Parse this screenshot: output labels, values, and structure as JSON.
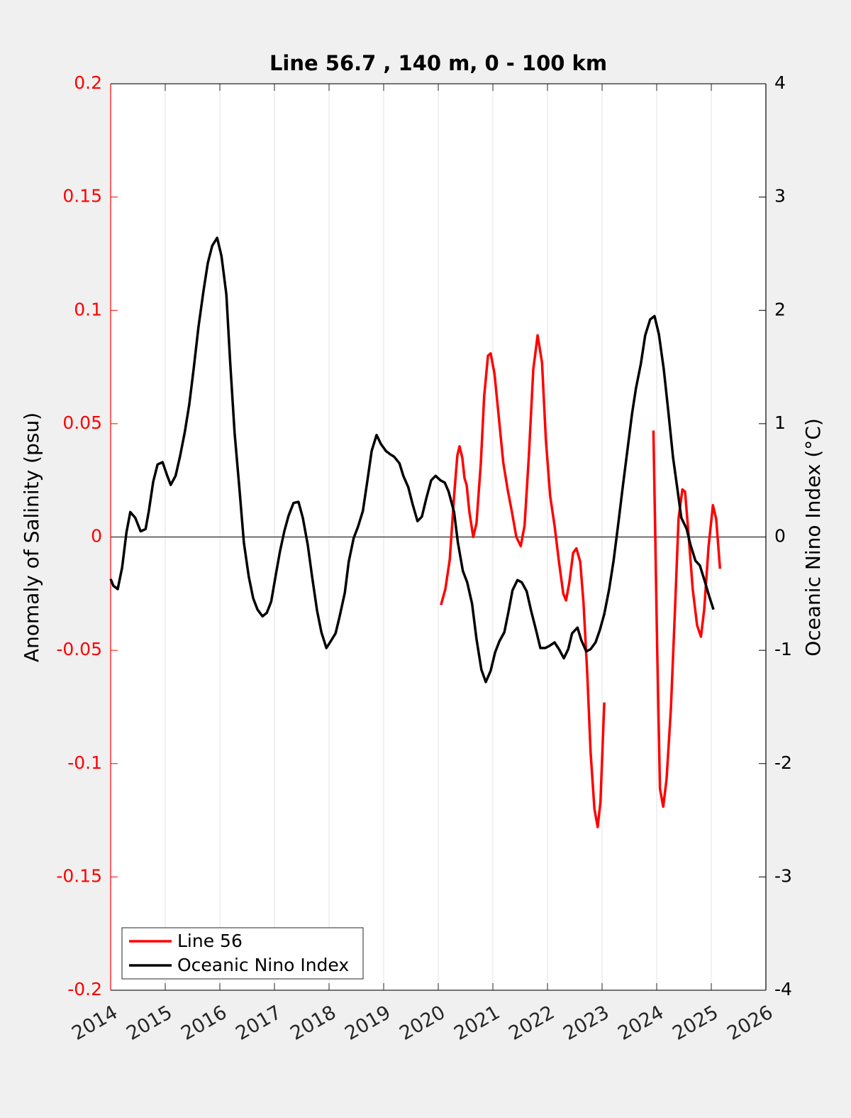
{
  "chart_data": {
    "type": "line",
    "title": "Line 56.7 , 140 m, 0 - 100 km",
    "y_label": "Anomaly of Salinity (psu)",
    "y2_label": "Oceanic Nino Index (°C)",
    "xlim": [
      2014,
      2026
    ],
    "xticks": [
      2014,
      2015,
      2016,
      2017,
      2018,
      2019,
      2020,
      2021,
      2022,
      2023,
      2024,
      2025,
      2026
    ],
    "ylim": [
      -0.2,
      0.2
    ],
    "yticks": [
      -0.2,
      -0.15,
      -0.1,
      -0.05,
      0,
      0.05,
      0.1,
      0.15,
      0.2
    ],
    "y2lim": [
      -4,
      4
    ],
    "y2ticks": [
      -4,
      -3,
      -2,
      -1,
      0,
      1,
      2,
      3,
      4
    ],
    "y_color": "#ff0000",
    "y2_color": "#000000",
    "grid": "x",
    "zero_line": true,
    "legend": "lower left",
    "series": [
      {
        "name": "Line 56",
        "color": "#ff0000",
        "axis": "y",
        "x": [
          2020.05,
          2020.13,
          2020.21,
          2020.29,
          2020.35,
          2020.39,
          2020.44,
          2020.48,
          2020.52,
          2020.57,
          2020.64,
          2020.7,
          2020.78,
          2020.84,
          2020.91,
          2020.96,
          2021.03,
          2021.1,
          2021.19,
          2021.27,
          2021.35,
          2021.43,
          2021.51,
          2021.58,
          2021.66,
          2021.74,
          2021.82,
          2021.9,
          2021.97,
          2022.05,
          2022.13,
          2022.21,
          2022.29,
          2022.34,
          2022.4,
          2022.47,
          2022.53,
          2022.6,
          2022.66,
          2022.73,
          2022.79,
          2022.86,
          2022.92,
          2022.97,
          2023.04,
          null,
          2023.94,
          2024.01,
          2024.06,
          2024.12,
          2024.18,
          2024.26,
          2024.34,
          2024.4,
          2024.47,
          2024.52,
          2024.58,
          2024.66,
          2024.74,
          2024.81,
          2024.87,
          2024.95,
          2025.03,
          2025.09,
          2025.16
        ],
        "values": [
          -0.03,
          -0.023,
          -0.01,
          0.018,
          0.036,
          0.04,
          0.035,
          0.026,
          0.023,
          0.011,
          0,
          0.006,
          0.033,
          0.062,
          0.08,
          0.081,
          0.072,
          0.055,
          0.033,
          0.021,
          0.011,
          0,
          -0.004,
          0.005,
          0.036,
          0.074,
          0.089,
          0.077,
          0.043,
          0.018,
          0.005,
          -0.011,
          -0.025,
          -0.028,
          -0.02,
          -0.007,
          -0.005,
          -0.011,
          -0.029,
          -0.061,
          -0.095,
          -0.12,
          -0.128,
          -0.117,
          -0.073,
          null,
          0.047,
          -0.051,
          -0.111,
          -0.119,
          -0.107,
          -0.076,
          -0.029,
          0.008,
          0.021,
          0.02,
          0.002,
          -0.023,
          -0.039,
          -0.044,
          -0.032,
          -0.004,
          0.014,
          0.008,
          -0.014
        ]
      },
      {
        "name": "Oceanic Nino Index",
        "color": "#000000",
        "axis": "y2",
        "x": [
          2014.0,
          2014.05,
          2014.13,
          2014.21,
          2014.29,
          2014.36,
          2014.45,
          2014.55,
          2014.64,
          2014.7,
          2014.78,
          2014.86,
          2014.95,
          2015.03,
          2015.1,
          2015.19,
          2015.27,
          2015.36,
          2015.44,
          2015.52,
          2015.61,
          2015.7,
          2015.78,
          2015.86,
          2015.95,
          2016.03,
          2016.12,
          2016.19,
          2016.27,
          2016.36,
          2016.44,
          2016.53,
          2016.61,
          2016.69,
          2016.78,
          2016.86,
          2016.94,
          2017.03,
          2017.1,
          2017.18,
          2017.26,
          2017.35,
          2017.44,
          2017.52,
          2017.61,
          2017.69,
          2017.78,
          2017.86,
          2017.95,
          2018.03,
          2018.12,
          2018.19,
          2018.29,
          2018.36,
          2018.45,
          2018.53,
          2018.62,
          2018.7,
          2018.78,
          2018.87,
          2018.95,
          2019.04,
          2019.12,
          2019.19,
          2019.29,
          2019.36,
          2019.45,
          2019.53,
          2019.62,
          2019.7,
          2019.78,
          2019.87,
          2019.95,
          2020.04,
          2020.12,
          2020.19,
          2020.29,
          2020.36,
          2020.45,
          2020.53,
          2020.62,
          2020.7,
          2020.79,
          2020.87,
          2020.96,
          2021.04,
          2021.12,
          2021.21,
          2021.29,
          2021.36,
          2021.45,
          2021.53,
          2021.62,
          2021.7,
          2021.79,
          2021.87,
          2021.96,
          2022.04,
          2022.13,
          2022.21,
          2022.3,
          2022.38,
          2022.45,
          2022.55,
          2022.62,
          2022.71,
          2022.79,
          2022.88,
          2022.96,
          2023.04,
          2023.13,
          2023.21,
          2023.3,
          2023.38,
          2023.47,
          2023.55,
          2023.62,
          2023.71,
          2023.79,
          2023.88,
          2023.96,
          2024.04,
          2024.13,
          2024.21,
          2024.3,
          2024.38,
          2024.45,
          2024.55,
          2024.62,
          2024.71,
          2024.79,
          2024.88,
          2024.96,
          2025.04
        ],
        "values": [
          -0.37,
          -0.43,
          -0.46,
          -0.27,
          0.04,
          0.22,
          0.17,
          0.05,
          0.07,
          0.23,
          0.49,
          0.64,
          0.66,
          0.55,
          0.46,
          0.54,
          0.71,
          0.93,
          1.17,
          1.48,
          1.86,
          2.17,
          2.42,
          2.57,
          2.64,
          2.48,
          2.14,
          1.54,
          0.92,
          0.42,
          -0.05,
          -0.35,
          -0.54,
          -0.64,
          -0.7,
          -0.67,
          -0.57,
          -0.32,
          -0.13,
          0.05,
          0.19,
          0.3,
          0.31,
          0.17,
          -0.07,
          -0.35,
          -0.65,
          -0.84,
          -0.98,
          -0.92,
          -0.85,
          -0.71,
          -0.49,
          -0.22,
          -0.01,
          0.09,
          0.23,
          0.49,
          0.76,
          0.9,
          0.82,
          0.76,
          0.73,
          0.71,
          0.65,
          0.54,
          0.44,
          0.29,
          0.14,
          0.18,
          0.34,
          0.5,
          0.54,
          0.5,
          0.48,
          0.4,
          0.22,
          -0.05,
          -0.3,
          -0.4,
          -0.59,
          -0.9,
          -1.17,
          -1.28,
          -1.18,
          -1.02,
          -0.92,
          -0.84,
          -0.65,
          -0.47,
          -0.38,
          -0.4,
          -0.48,
          -0.65,
          -0.82,
          -0.98,
          -0.98,
          -0.96,
          -0.93,
          -0.99,
          -1.07,
          -0.99,
          -0.85,
          -0.8,
          -0.91,
          -1.01,
          -0.99,
          -0.93,
          -0.82,
          -0.68,
          -0.46,
          -0.21,
          0.13,
          0.45,
          0.79,
          1.09,
          1.31,
          1.53,
          1.78,
          1.92,
          1.95,
          1.79,
          1.48,
          1.12,
          0.7,
          0.42,
          0.17,
          0.07,
          -0.07,
          -0.21,
          -0.25,
          -0.39,
          -0.52,
          -0.64
        ]
      }
    ]
  }
}
